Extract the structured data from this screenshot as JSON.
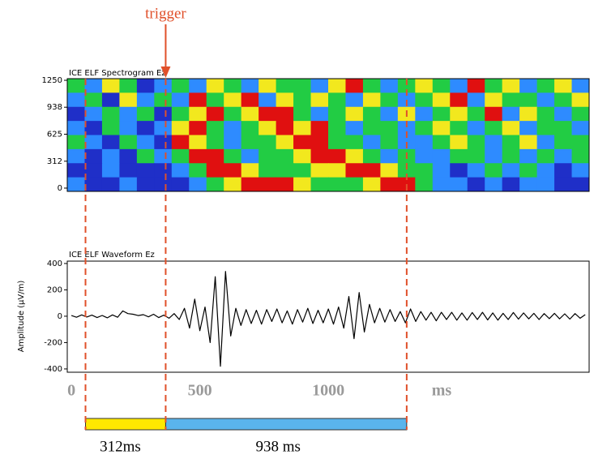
{
  "chart_data": [
    {
      "type": "heatmap",
      "title": "ICE ELF Spectrogram Ez",
      "xlim": [
        -16,
        2015
      ],
      "ylim": [
        -38,
        1269
      ],
      "yticks": [
        0,
        312,
        625,
        938,
        1250
      ],
      "colors": [
        "#1f2fc8",
        "#2e8bff",
        "#22cc44",
        "#f2e81e",
        "#e01010"
      ],
      "z": [
        [
          2,
          1,
          3,
          2,
          0,
          1,
          2,
          1,
          3,
          2,
          1,
          3,
          2,
          2,
          1,
          3,
          4,
          2,
          1,
          2,
          3,
          2,
          1,
          4,
          2,
          3,
          1,
          2,
          3,
          1
        ],
        [
          1,
          2,
          0,
          3,
          1,
          2,
          1,
          4,
          2,
          3,
          4,
          1,
          3,
          2,
          3,
          2,
          1,
          3,
          2,
          1,
          2,
          3,
          4,
          1,
          3,
          2,
          2,
          1,
          2,
          3
        ],
        [
          0,
          1,
          2,
          1,
          2,
          0,
          2,
          3,
          4,
          2,
          3,
          4,
          4,
          2,
          1,
          2,
          3,
          2,
          1,
          3,
          1,
          2,
          3,
          2,
          4,
          1,
          3,
          2,
          1,
          2
        ],
        [
          1,
          0,
          2,
          1,
          0,
          1,
          3,
          4,
          2,
          1,
          2,
          3,
          4,
          3,
          4,
          2,
          1,
          2,
          2,
          1,
          2,
          3,
          2,
          1,
          2,
          3,
          1,
          2,
          2,
          1
        ],
        [
          2,
          1,
          0,
          2,
          1,
          0,
          4,
          3,
          2,
          1,
          2,
          2,
          3,
          4,
          4,
          2,
          2,
          1,
          2,
          1,
          1,
          2,
          3,
          2,
          1,
          2,
          3,
          1,
          2,
          2
        ],
        [
          1,
          0,
          1,
          0,
          2,
          1,
          2,
          4,
          4,
          2,
          1,
          2,
          2,
          3,
          4,
          4,
          3,
          2,
          1,
          2,
          1,
          1,
          2,
          2,
          1,
          2,
          1,
          2,
          1,
          2
        ],
        [
          0,
          0,
          1,
          0,
          0,
          0,
          1,
          2,
          4,
          4,
          3,
          2,
          2,
          2,
          3,
          3,
          4,
          4,
          3,
          2,
          2,
          1,
          0,
          1,
          2,
          1,
          2,
          1,
          0,
          1
        ],
        [
          1,
          0,
          0,
          1,
          0,
          0,
          0,
          1,
          2,
          3,
          4,
          4,
          4,
          3,
          2,
          2,
          2,
          3,
          4,
          4,
          2,
          1,
          1,
          0,
          1,
          0,
          1,
          1,
          0,
          0
        ]
      ]
    },
    {
      "type": "line",
      "title": "ICE ELF Waveform Ez",
      "ylabel": "Amplitude (μV/m)",
      "xlabel": "ms",
      "xlim": [
        -16,
        2015
      ],
      "ylim": [
        -425,
        418
      ],
      "yticks": [
        -400,
        -200,
        0,
        200,
        400
      ],
      "xticks": [
        0,
        500,
        1000
      ],
      "color": "#000000",
      "x": [
        0,
        20,
        40,
        60,
        80,
        100,
        120,
        140,
        160,
        180,
        200,
        220,
        240,
        260,
        280,
        300,
        320,
        340,
        360,
        380,
        400,
        420,
        440,
        460,
        480,
        500,
        520,
        540,
        560,
        580,
        600,
        620,
        640,
        660,
        680,
        700,
        720,
        740,
        760,
        780,
        800,
        820,
        840,
        860,
        880,
        900,
        920,
        940,
        960,
        980,
        1000,
        1020,
        1040,
        1060,
        1080,
        1100,
        1120,
        1140,
        1160,
        1180,
        1200,
        1220,
        1240,
        1260,
        1280,
        1300,
        1320,
        1340,
        1360,
        1380,
        1400,
        1420,
        1440,
        1460,
        1480,
        1500,
        1520,
        1540,
        1560,
        1580,
        1600,
        1620,
        1640,
        1660,
        1680,
        1700,
        1720,
        1740,
        1760,
        1780,
        1800,
        1820,
        1840,
        1860,
        1880,
        1900,
        1920,
        1940,
        1960,
        1980,
        2000
      ],
      "values": [
        5,
        -8,
        10,
        -6,
        8,
        -10,
        6,
        -12,
        10,
        -8,
        40,
        20,
        15,
        5,
        12,
        -5,
        15,
        -10,
        8,
        -15,
        20,
        -25,
        60,
        -90,
        130,
        -110,
        70,
        -200,
        300,
        -380,
        340,
        -150,
        60,
        -70,
        50,
        -55,
        45,
        -60,
        50,
        -40,
        55,
        -50,
        40,
        -60,
        50,
        -45,
        60,
        -55,
        45,
        -50,
        55,
        -60,
        70,
        -90,
        150,
        -170,
        180,
        -120,
        90,
        -50,
        60,
        -45,
        50,
        -40,
        35,
        -50,
        55,
        -40,
        35,
        -30,
        30,
        -35,
        30,
        -25,
        30,
        -30,
        25,
        -30,
        28,
        -25,
        30,
        -28,
        25,
        -30,
        22,
        -25,
        28,
        -22,
        25,
        -20,
        22,
        -25,
        20,
        -18,
        22,
        -20,
        18,
        -22,
        20,
        -15,
        12
      ],
      "annotation": "trigger",
      "marker_color": "#e0502a",
      "interval_start": 55,
      "intervals": {
        "values": [
          312,
          938
        ],
        "value_labels": [
          "312ms",
          "938 ms"
        ],
        "colors": [
          "#ffe800",
          "#5ab4ec"
        ]
      }
    }
  ]
}
